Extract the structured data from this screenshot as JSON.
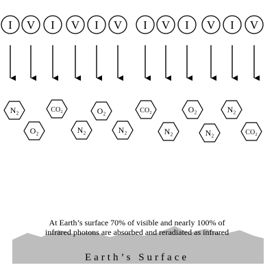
{
  "photons": [
    "I",
    "V",
    "I",
    "V",
    "I",
    "V",
    "I",
    "V",
    "I",
    "V",
    "I",
    "V"
  ],
  "molecules": [
    {
      "label": "N₂"
    },
    {
      "label": "O₂"
    },
    {
      "label": "CO₂"
    },
    {
      "label": "N₂"
    },
    {
      "label": "O₂"
    },
    {
      "label": "N₂"
    },
    {
      "label": "CO₂"
    },
    {
      "label": "N₂"
    },
    {
      "label": "O₂"
    },
    {
      "label": "N₂"
    },
    {
      "label": "N₂"
    },
    {
      "label": "CO₂"
    }
  ],
  "caption": {
    "line1": "At Earth’s surface 70% of visible and nearly 100% of",
    "line2": "infrared photons are absorbed and reradiated as infrared"
  },
  "surface_label": "Earth’s   Surface",
  "colors": {
    "stroke": "#000000",
    "ground": "#bdbdbd",
    "background": "#ffffff"
  }
}
